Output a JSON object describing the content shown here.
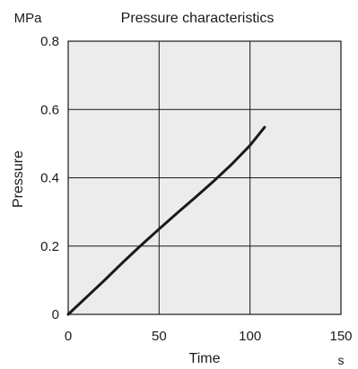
{
  "chart_data": {
    "type": "line",
    "title": "Pressure characteristics",
    "xlabel": "Time",
    "ylabel": "Pressure",
    "x_unit": "s",
    "y_unit": "MPa",
    "xlim": [
      0,
      150
    ],
    "ylim": [
      0,
      0.8
    ],
    "x_ticks": [
      "0",
      "50",
      "100",
      "150"
    ],
    "y_ticks": [
      "0",
      "0.2",
      "0.4",
      "0.6",
      "0.8"
    ],
    "grid": true,
    "plot_background": "#ececec",
    "line_color": "#1a1a1a",
    "series": [
      {
        "x": [
          0,
          10,
          20,
          30,
          40,
          50,
          60,
          70,
          80,
          90,
          100,
          108
        ],
        "y": [
          0,
          0.05,
          0.1,
          0.152,
          0.202,
          0.25,
          0.297,
          0.343,
          0.39,
          0.44,
          0.495,
          0.548
        ]
      }
    ]
  }
}
